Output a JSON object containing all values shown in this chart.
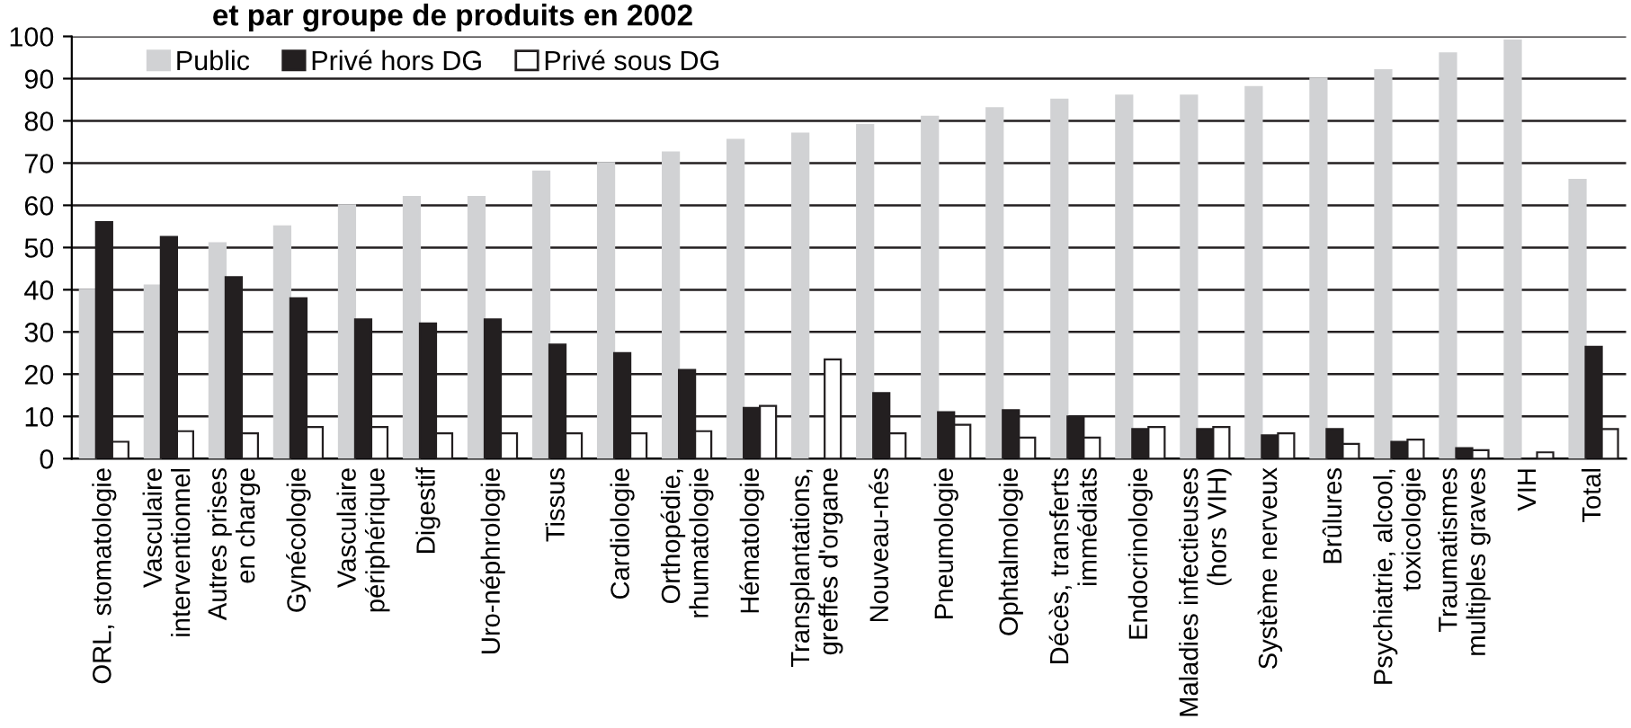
{
  "chart_data": {
    "type": "bar",
    "title": "et par groupe de produits en 2002",
    "categories": [
      "ORL, stomatologie",
      "Vasculaire\ninterventionnel",
      "Autres prises\nen charge",
      "Gynécologie",
      "Vasculaire\npériphérique",
      "Digestif",
      "Uro-néphrologie",
      "Tissus",
      "Cardiologie",
      "Orthopédie,\nrhumatologie",
      "Hématologie",
      "Transplantations,\ngreffes d'organe",
      "Nouveau-nés",
      "Pneumologie",
      "Ophtalmologie",
      "Décès, transferts\nimmédiats",
      "Endocrinologie",
      "Maladies infectieuses\n(hors VIH)",
      "Système nerveux",
      "Brûlures",
      "Psychiatrie, alcool,\ntoxicologie",
      "Traumatismes\nmultiples graves",
      "VIH",
      "Total"
    ],
    "series": [
      {
        "name": "Public",
        "color": "#d1d2d4",
        "values": [
          40,
          41,
          51,
          55,
          60,
          62,
          62,
          68,
          70,
          72.5,
          75.5,
          77,
          79,
          81,
          83,
          85,
          86,
          86,
          88,
          90,
          92,
          96,
          99,
          66
        ]
      },
      {
        "name": "Privé hors DG",
        "color": "#231f20",
        "values": [
          56,
          52.5,
          43,
          38,
          33,
          32,
          33,
          27,
          25,
          21,
          12,
          0,
          15.5,
          11,
          11.5,
          10,
          7,
          7,
          5.5,
          7,
          4,
          2.5,
          0,
          26.5
        ]
      },
      {
        "name": "Privé sous DG",
        "color": "#ffffff",
        "values": [
          4,
          6.5,
          6,
          7.5,
          7.5,
          6,
          6,
          6,
          6,
          6.5,
          12.5,
          23.5,
          6,
          8,
          5,
          5,
          7.5,
          7.5,
          6,
          3.5,
          4.5,
          2,
          1.5,
          7
        ]
      }
    ],
    "ylim": [
      0,
      100
    ],
    "yticks": [
      0,
      10,
      20,
      30,
      40,
      50,
      60,
      70,
      80,
      90,
      100
    ],
    "grid": "y",
    "legend": "top left"
  }
}
